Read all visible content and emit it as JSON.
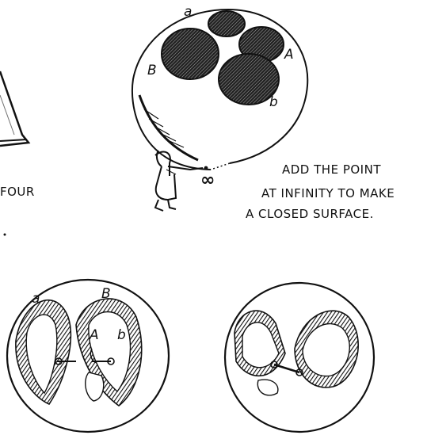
{
  "caption": {
    "line1": "ADD THE POINT",
    "line2": "AT INFINITY TO MAKE",
    "line3": "A CLOSED SURFACE."
  },
  "left_fragment": {
    "text": "FOUR"
  },
  "top_sphere": {
    "labels": {
      "a_small": "a",
      "B_upper": "B",
      "A_upper": "A",
      "b_small": "b"
    },
    "infinity_symbol": "∞"
  },
  "bottom_left_sphere": {
    "labels": {
      "a_small": "a",
      "B_upper": "B",
      "A_upper": "A",
      "b_small": "b"
    }
  },
  "colors": {
    "ink": "#111111",
    "paper": "#ffffff"
  }
}
